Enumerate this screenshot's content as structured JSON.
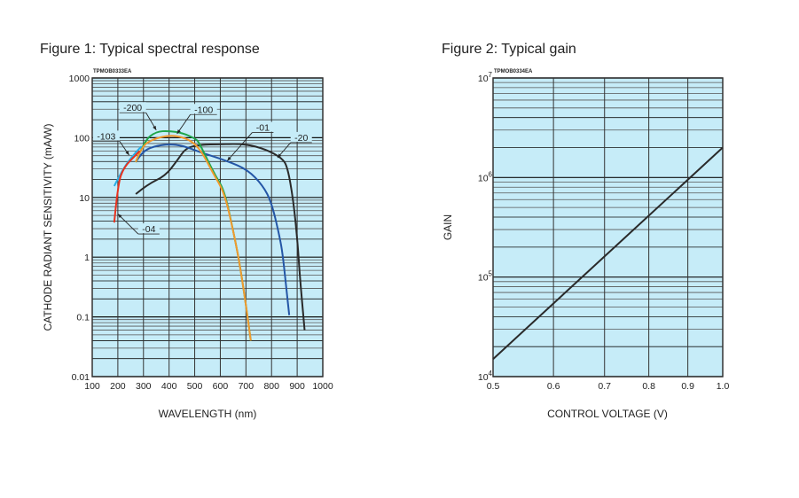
{
  "chart_data": [
    {
      "type": "line",
      "title": "Figure 1: Typical spectral response",
      "code": "TPMOB0333EA",
      "xlabel": "WAVELENGTH (nm)",
      "ylabel": "CATHODE RADIANT SENSITIVITY (mA/W)",
      "xscale": "linear",
      "yscale": "log",
      "xlim": [
        100,
        1000
      ],
      "ylim": [
        0.01,
        1000
      ],
      "xticks": [
        100,
        200,
        300,
        400,
        500,
        600,
        700,
        800,
        900,
        1000
      ],
      "xtick_labels": [
        "100",
        "200",
        "300",
        "400",
        "500",
        "600",
        "700",
        "800",
        "900",
        "1000"
      ],
      "yticks": [
        0.01,
        0.1,
        1,
        10,
        100,
        1000
      ],
      "ytick_labels": [
        "0.01",
        "0.1",
        "1",
        "10",
        "100",
        "1000"
      ],
      "grid": true,
      "background": "#c6ecf8",
      "series": [
        {
          "name": "-20",
          "color": "#2a2a2a",
          "x": [
            270,
            316,
            385,
            431,
            466,
            522,
            600,
            697,
            777,
            839,
            862,
            885,
            902,
            910,
            929
          ],
          "y": [
            11.4,
            16.5,
            23,
            41,
            68,
            76,
            78,
            79,
            64,
            46,
            33,
            9,
            1.7,
            0.5,
            0.06
          ]
        },
        {
          "name": "-01",
          "color": "#2456a6",
          "x": [
            270,
            293,
            339,
            400,
            453,
            522,
            626,
            707,
            765,
            800,
            835,
            846,
            858,
            869
          ],
          "y": [
            39,
            57,
            72,
            78,
            74,
            57,
            41,
            29,
            16,
            8.3,
            1.9,
            0.9,
            0.29,
            0.107
          ]
        },
        {
          "name": "-200",
          "color": "#1fa64a",
          "x": [
            270,
            304,
            350,
            400,
            453,
            506,
            518,
            547,
            581,
            616,
            650,
            673,
            696,
            719
          ],
          "y": [
            39,
            90,
            127,
            130,
            120,
            95,
            81,
            45,
            23,
            13,
            2.8,
            0.9,
            0.21,
            0.04
          ]
        },
        {
          "name": "-100",
          "color": "#f29a2e",
          "x": [
            270,
            293,
            339,
            400,
            453,
            500,
            535,
            570,
            616,
            650,
            673,
            696,
            719
          ],
          "y": [
            39,
            72,
            95,
            110,
            103,
            81,
            51,
            26,
            12,
            2.8,
            0.9,
            0.21,
            0.04
          ]
        },
        {
          "name": "-103",
          "color": "#27aee6",
          "x": [
            186,
            223,
            270,
            293
          ],
          "y": [
            15.5,
            32,
            57,
            72
          ]
        },
        {
          "name": "-04",
          "color": "#e8321e",
          "x": [
            186,
            200,
            223,
            270,
            285
          ],
          "y": [
            3.8,
            16.5,
            32,
            51,
            60
          ]
        }
      ],
      "annotations": [
        {
          "text": "-200",
          "x": 258,
          "y": 300,
          "target_x": 350,
          "target_y": 134
        },
        {
          "text": "-100",
          "x": 535,
          "y": 280,
          "target_x": 431,
          "target_y": 116
        },
        {
          "text": "-103",
          "x": 155,
          "y": 100,
          "target_x": 244,
          "target_y": 51
        },
        {
          "text": "-01",
          "x": 766,
          "y": 140,
          "target_x": 627,
          "target_y": 41
        },
        {
          "text": "-20",
          "x": 916,
          "y": 95,
          "target_x": 823,
          "target_y": 46
        },
        {
          "text": "-04",
          "x": 321,
          "y": 2.8,
          "target_x": 200,
          "target_y": 5.3
        }
      ]
    },
    {
      "type": "line",
      "title": "Figure 2: Typical gain",
      "code": "TPMOB0334EA",
      "xlabel": "CONTROL VOLTAGE (V)",
      "ylabel": "GAIN",
      "xscale": "log",
      "yscale": "log",
      "xlim": [
        0.5,
        1.0
      ],
      "ylim": [
        10000,
        10000000
      ],
      "xticks": [
        0.5,
        0.6,
        0.7,
        0.8,
        0.9,
        1.0
      ],
      "xtick_labels": [
        "0.5",
        "0.6",
        "0.7",
        "0.8",
        "0.9",
        "1.0"
      ],
      "yticks": [
        10000,
        100000,
        1000000,
        10000000
      ],
      "ytick_labels": [
        {
          "base": "10",
          "exp": "4"
        },
        {
          "base": "10",
          "exp": "5"
        },
        {
          "base": "10",
          "exp": "6"
        },
        {
          "base": "10",
          "exp": "7"
        }
      ],
      "grid": true,
      "background": "#c6ecf8",
      "series": [
        {
          "name": "Gain",
          "color": "#2a2a2a",
          "x": [
            0.5,
            1.0
          ],
          "y": [
            15000,
            2000000
          ]
        }
      ]
    }
  ]
}
